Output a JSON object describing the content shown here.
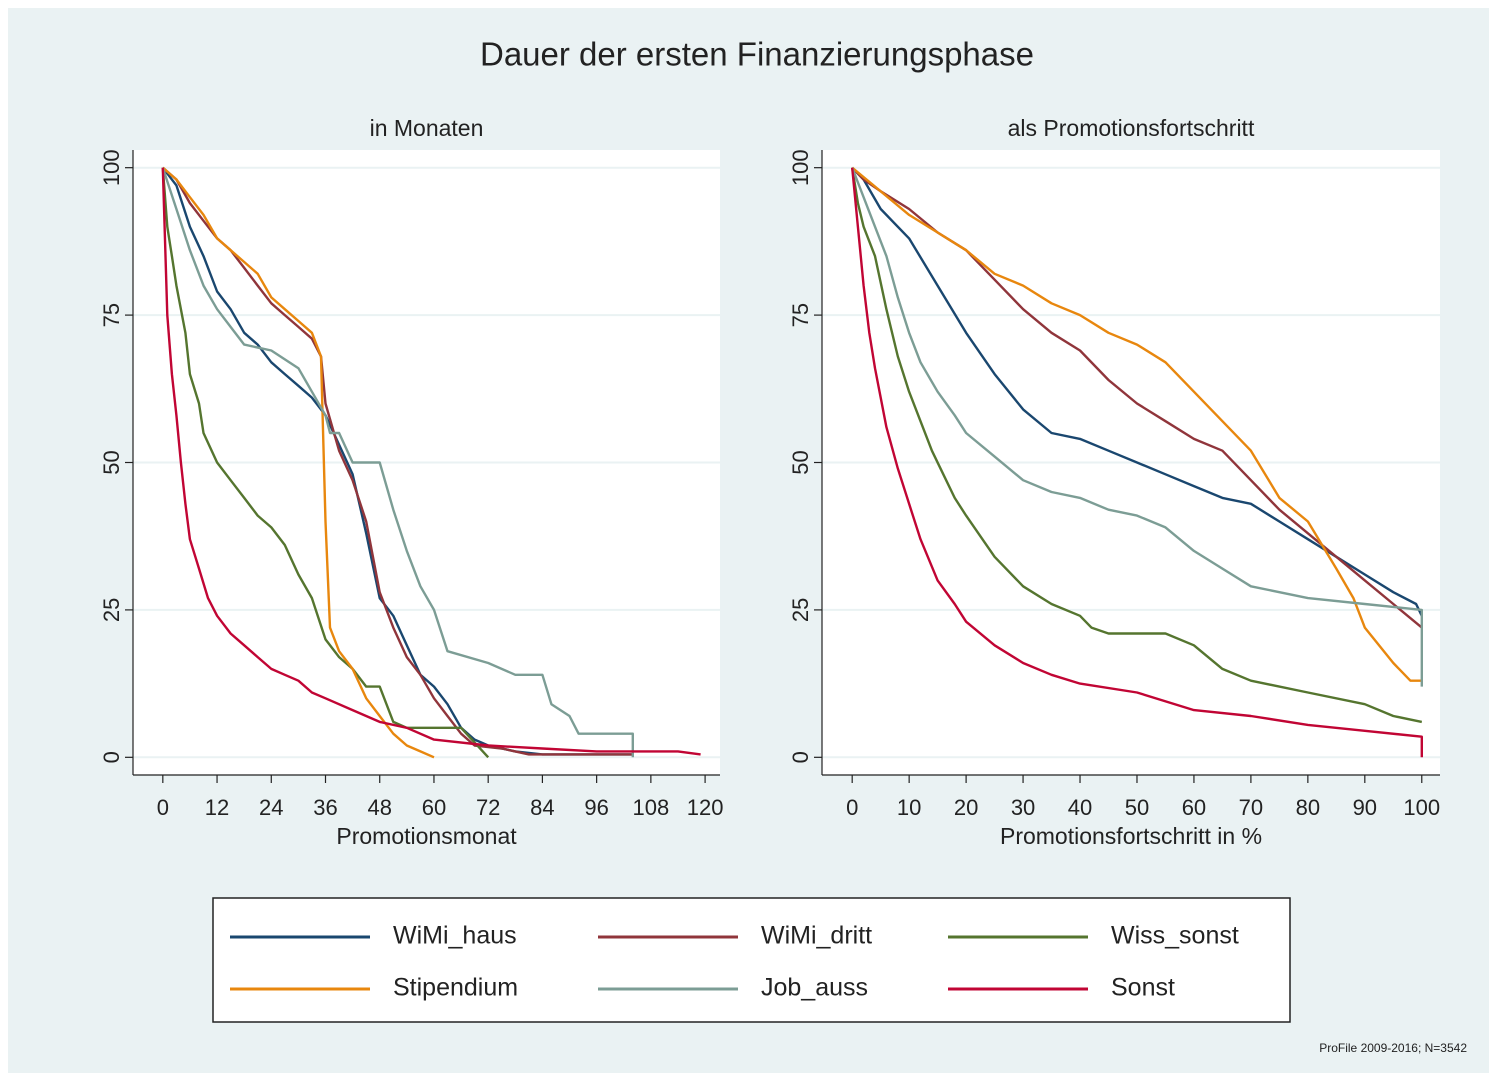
{
  "title": "Dauer der ersten Finanzierungsphase",
  "note": "ProFile 2009-2016; N=3542",
  "legend": [
    {
      "name": "WiMi_haus",
      "color": "#1a476f"
    },
    {
      "name": "WiMi_dritt",
      "color": "#90353b"
    },
    {
      "name": "Wiss_sonst",
      "color": "#55752f"
    },
    {
      "name": "Stipendium",
      "color": "#e8870e"
    },
    {
      "name": "Job_auss",
      "color": "#7c9d95"
    },
    {
      "name": "Sonst",
      "color": "#c10534"
    }
  ],
  "chart_data": [
    {
      "type": "line",
      "title": "in Monaten",
      "x_label": "Promotionsmonat",
      "xlim": [
        -6.6,
        123.3
      ],
      "ylim": [
        -3,
        103
      ],
      "xticks": [
        0,
        12,
        24,
        36,
        48,
        60,
        72,
        84,
        96,
        108,
        120
      ],
      "yticks": [
        0,
        25,
        50,
        75,
        100
      ],
      "grid": true,
      "series": [
        {
          "x": [
            0,
            3,
            6,
            9,
            12,
            15,
            18,
            21,
            24,
            27,
            30,
            33,
            36,
            39,
            42,
            45,
            48,
            51,
            54,
            57,
            60,
            63,
            66,
            69,
            72,
            78,
            84,
            104
          ],
          "values": [
            100,
            97,
            90,
            85,
            79,
            76,
            72,
            70,
            67,
            65,
            63,
            61,
            58,
            53,
            48,
            38,
            27,
            24,
            19,
            14,
            12,
            9,
            5,
            3,
            2,
            1,
            0.5,
            0.5
          ]
        },
        {
          "x": [
            0,
            3,
            6,
            9,
            12,
            15,
            18,
            21,
            24,
            27,
            30,
            33,
            35,
            36,
            39,
            42,
            45,
            48,
            51,
            54,
            57,
            60,
            63,
            66,
            69,
            75,
            81,
            104
          ],
          "values": [
            100,
            98,
            94,
            91,
            88,
            86,
            83,
            80,
            77,
            75,
            73,
            71,
            68,
            60,
            52,
            47,
            40,
            28,
            22,
            17,
            14,
            10,
            7,
            4,
            2,
            1.5,
            0.5,
            0.5
          ]
        },
        {
          "x": [
            0,
            1,
            2,
            3,
            5,
            6,
            8,
            9,
            12,
            15,
            18,
            21,
            24,
            27,
            30,
            33,
            36,
            39,
            42,
            45,
            48,
            51,
            54,
            60,
            66,
            72
          ],
          "values": [
            100,
            90,
            85,
            80,
            72,
            65,
            60,
            55,
            50,
            47,
            44,
            41,
            39,
            36,
            31,
            27,
            20,
            17,
            15,
            12,
            12,
            6,
            5,
            5,
            5,
            0
          ]
        },
        {
          "x": [
            0,
            3,
            6,
            9,
            12,
            15,
            18,
            21,
            24,
            27,
            30,
            33,
            35,
            36,
            37,
            39,
            42,
            45,
            48,
            51,
            54,
            57,
            60
          ],
          "values": [
            100,
            98,
            95,
            92,
            88,
            86,
            84,
            82,
            78,
            76,
            74,
            72,
            68,
            40,
            22,
            18,
            15,
            10,
            7,
            4,
            2,
            1,
            0
          ]
        },
        {
          "x": [
            0,
            3,
            6,
            9,
            12,
            15,
            18,
            24,
            30,
            33,
            36,
            37,
            39,
            42,
            48,
            51,
            54,
            57,
            60,
            63,
            72,
            78,
            84,
            86,
            90,
            92,
            104,
            104
          ],
          "values": [
            100,
            93,
            86,
            80,
            76,
            73,
            70,
            69,
            66,
            62,
            58,
            55,
            55,
            50,
            50,
            42,
            35,
            29,
            25,
            18,
            16,
            14,
            14,
            9,
            7,
            4,
            4,
            0
          ]
        },
        {
          "x": [
            0,
            1,
            2,
            3,
            4,
            5,
            6,
            8,
            10,
            12,
            15,
            18,
            21,
            24,
            27,
            30,
            33,
            36,
            42,
            48,
            54,
            60,
            72,
            84,
            96,
            108,
            114,
            119
          ],
          "values": [
            100,
            75,
            65,
            58,
            50,
            43,
            37,
            32,
            27,
            24,
            21,
            19,
            17,
            15,
            14,
            13,
            11,
            10,
            8,
            6,
            5,
            3,
            2,
            1.5,
            1,
            1,
            1,
            0.5
          ]
        }
      ]
    },
    {
      "type": "line",
      "title": "als Promotionsfortschritt",
      "x_label": "Promotionsfortschritt in %",
      "xlim": [
        -5.3,
        103.2
      ],
      "ylim": [
        -3,
        103
      ],
      "xticks": [
        0,
        10,
        20,
        30,
        40,
        50,
        60,
        70,
        80,
        90,
        100
      ],
      "yticks": [
        0,
        25,
        50,
        75,
        100
      ],
      "grid": true,
      "series": [
        {
          "x": [
            0,
            2,
            5,
            10,
            15,
            20,
            25,
            30,
            35,
            40,
            45,
            50,
            55,
            60,
            65,
            70,
            75,
            80,
            85,
            90,
            95,
            99,
            100
          ],
          "values": [
            100,
            98,
            93,
            88,
            80,
            72,
            65,
            59,
            55,
            54,
            52,
            50,
            48,
            46,
            44,
            43,
            40,
            37,
            34,
            31,
            28,
            26,
            24
          ]
        },
        {
          "x": [
            0,
            2,
            5,
            10,
            15,
            20,
            25,
            30,
            35,
            40,
            45,
            50,
            55,
            60,
            65,
            70,
            75,
            80,
            85,
            90,
            95,
            100
          ],
          "values": [
            100,
            98,
            96,
            93,
            89,
            86,
            81,
            76,
            72,
            69,
            64,
            60,
            57,
            54,
            52,
            47,
            42,
            38,
            34,
            30,
            26,
            22
          ]
        },
        {
          "x": [
            0,
            1,
            2,
            4,
            6,
            8,
            10,
            12,
            14,
            16,
            18,
            20,
            25,
            30,
            35,
            40,
            42,
            45,
            55,
            60,
            65,
            70,
            80,
            90,
            95,
            100
          ],
          "values": [
            100,
            94,
            90,
            85,
            76,
            68,
            62,
            57,
            52,
            48,
            44,
            41,
            34,
            29,
            26,
            24,
            22,
            21,
            21,
            19,
            15,
            13,
            11,
            9,
            7,
            6
          ]
        },
        {
          "x": [
            0,
            5,
            10,
            15,
            20,
            25,
            30,
            35,
            40,
            45,
            50,
            55,
            60,
            65,
            70,
            75,
            80,
            85,
            88,
            90,
            95,
            98,
            100
          ],
          "values": [
            100,
            96,
            92,
            89,
            86,
            82,
            80,
            77,
            75,
            72,
            70,
            67,
            62,
            57,
            52,
            44,
            40,
            32,
            27,
            22,
            16,
            13,
            13
          ]
        },
        {
          "x": [
            0,
            2,
            4,
            6,
            8,
            10,
            12,
            15,
            18,
            20,
            25,
            30,
            35,
            40,
            45,
            50,
            55,
            60,
            65,
            70,
            80,
            90,
            100,
            100
          ],
          "values": [
            100,
            95,
            90,
            85,
            78,
            72,
            67,
            62,
            58,
            55,
            51,
            47,
            45,
            44,
            42,
            41,
            39,
            35,
            32,
            29,
            27,
            26,
            25,
            12
          ]
        },
        {
          "x": [
            0,
            1,
            2,
            3,
            4,
            6,
            8,
            10,
            12,
            15,
            18,
            20,
            25,
            30,
            35,
            40,
            50,
            60,
            70,
            80,
            90,
            100,
            100
          ],
          "values": [
            100,
            90,
            80,
            72,
            66,
            56,
            49,
            43,
            37,
            30,
            26,
            23,
            19,
            16,
            14,
            12.5,
            11,
            8,
            7,
            5.5,
            4.5,
            3.5,
            0
          ]
        }
      ]
    }
  ]
}
